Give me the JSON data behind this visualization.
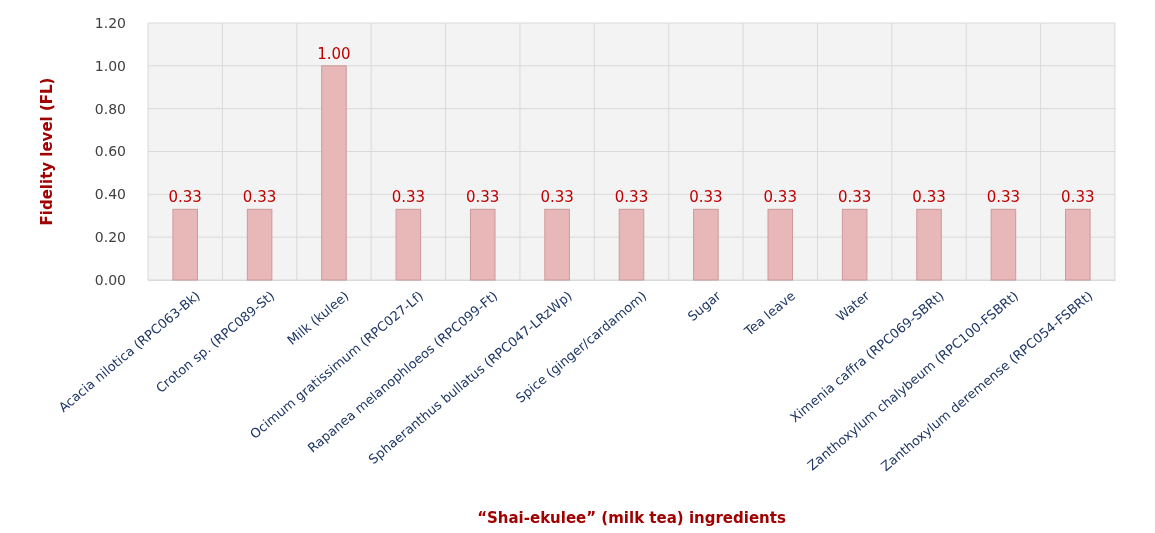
{
  "chart_data": {
    "type": "bar",
    "xlabel": "“Shai-ekulee” (milk tea) ingredients",
    "ylabel": "Fidelity level (FL)",
    "categories": [
      "Acacia nilotica (RPC063-Bk)",
      "Croton sp. (RPC089-St)",
      "Milk (kulee)",
      "Ocimum gratissimum (RPC027-Lf)",
      "Rapanea melanophloeos (RPC099-Ft)",
      "Sphaeranthus bullatus (RPC047-LRzWp)",
      "Spice (ginger/cardamom)",
      "Sugar",
      "Tea leave",
      "Water",
      "Ximenia caffra (RPC069-SBRt)",
      "Zanthoxylum chalybeum (RPC100-FSBRt)",
      "Zanthoxylum deremense (RPC054-FSBRt)"
    ],
    "values": [
      0.33,
      0.33,
      1.0,
      0.33,
      0.33,
      0.33,
      0.33,
      0.33,
      0.33,
      0.33,
      0.33,
      0.33,
      0.33
    ],
    "color": "#e8b8b8",
    "ylim": [
      0,
      1.2
    ],
    "yticks": [
      {
        "value": 0,
        "label": "0.00"
      },
      {
        "value": 0.2,
        "label": "0.20"
      },
      {
        "value": 0.4,
        "label": "0.40"
      },
      {
        "value": 0.6,
        "label": "0.60"
      },
      {
        "value": 0.8,
        "label": "0.80"
      },
      {
        "value": 1,
        "label": "1.00"
      },
      {
        "value": 1.2,
        "label": "1.20"
      }
    ],
    "value_labels": [
      "0.33",
      "0.33",
      "1.00",
      "0.33",
      "0.33",
      "0.33",
      "0.33",
      "0.33",
      "0.33",
      "0.33",
      "0.33",
      "0.33",
      "0.33"
    ],
    "grid": true
  }
}
